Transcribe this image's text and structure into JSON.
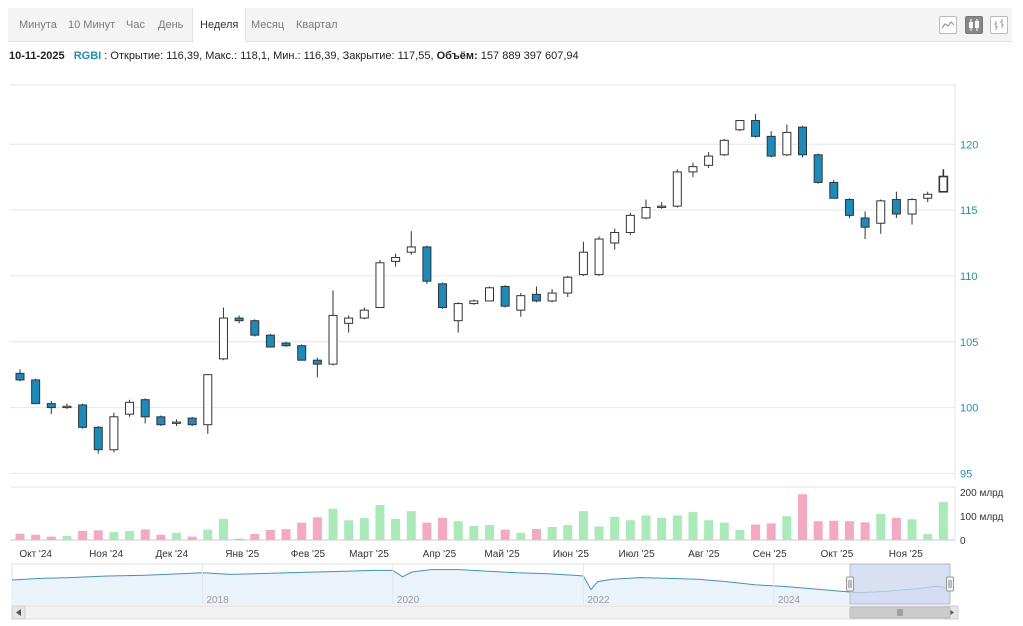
{
  "tabs": [
    {
      "label": "Минута",
      "active": false
    },
    {
      "label": "10 Минут",
      "active": false
    },
    {
      "label": "Час",
      "active": false
    },
    {
      "label": "День",
      "active": false
    },
    {
      "label": "Неделя",
      "active": true
    },
    {
      "label": "Месяц",
      "active": false
    },
    {
      "label": "Квартал",
      "active": false
    }
  ],
  "toolbar": {
    "icons": [
      "line-chart-icon",
      "candlestick-icon",
      "ohlc-bars-icon"
    ],
    "active": "candlestick-icon"
  },
  "info": {
    "date": "10-11-2025",
    "ticker": "RGBI",
    "open_label": "Открытие:",
    "open": "116,39",
    "high_label": "Макс.:",
    "high": "118,1",
    "low_label": "Мин.:",
    "low": "116,39",
    "close_label": "Закрытие:",
    "close": "117,55",
    "volume_label": "Объём:",
    "volume": "157 889 397 607,94"
  },
  "colors": {
    "up_fill": "#ffffff",
    "down_fill": "#1a8bbd",
    "candle_stroke": "#333333",
    "vol_up": "#a9eab9",
    "vol_down": "#f5a9c0",
    "axis_text": "#1f8fc4",
    "navigator_line": "#3d93c7",
    "navigator_mask": "#ccd6ee"
  },
  "chart_data": {
    "type": "candlestick",
    "period": "week",
    "y_ticks": [
      95,
      100,
      105,
      110,
      115,
      120
    ],
    "ylim": [
      94.5,
      124.5
    ],
    "volume_ticks": [
      "0",
      "100 млрд",
      "200 млрд"
    ],
    "volume_ylim": [
      0,
      220
    ],
    "x_labels": [
      {
        "label": "Окт '24",
        "index": 1
      },
      {
        "label": "Ноя '24",
        "index": 5.5
      },
      {
        "label": "Дек '24",
        "index": 9.7
      },
      {
        "label": "Янв '25",
        "index": 14.2
      },
      {
        "label": "Фев '25",
        "index": 18.4
      },
      {
        "label": "Март '25",
        "index": 22.3
      },
      {
        "label": "Апр '25",
        "index": 26.8
      },
      {
        "label": "Май '25",
        "index": 30.8
      },
      {
        "label": "Июн '25",
        "index": 35.2
      },
      {
        "label": "Июл '25",
        "index": 39.4
      },
      {
        "label": "Авг '25",
        "index": 43.7
      },
      {
        "label": "Сен '25",
        "index": 47.9
      },
      {
        "label": "Окт '25",
        "index": 52.2
      },
      {
        "label": "Ноя '25",
        "index": 56.6
      }
    ],
    "candles": [
      {
        "o": 102.6,
        "h": 102.9,
        "l": 102.0,
        "c": 102.1,
        "v": 26
      },
      {
        "o": 102.1,
        "h": 102.2,
        "l": 100.3,
        "c": 100.3,
        "v": 22
      },
      {
        "o": 100.3,
        "h": 100.5,
        "l": 99.5,
        "c": 100.0,
        "v": 14
      },
      {
        "o": 100.0,
        "h": 100.3,
        "l": 99.9,
        "c": 100.1,
        "v": 17
      },
      {
        "o": 100.2,
        "h": 100.3,
        "l": 98.4,
        "c": 98.5,
        "v": 38
      },
      {
        "o": 98.5,
        "h": 98.6,
        "l": 96.5,
        "c": 96.8,
        "v": 40
      },
      {
        "o": 96.8,
        "h": 99.6,
        "l": 96.6,
        "c": 99.3,
        "v": 33
      },
      {
        "o": 99.5,
        "h": 100.6,
        "l": 99.3,
        "c": 100.4,
        "v": 37
      },
      {
        "o": 100.6,
        "h": 100.7,
        "l": 98.8,
        "c": 99.3,
        "v": 44
      },
      {
        "o": 99.3,
        "h": 99.4,
        "l": 98.6,
        "c": 98.7,
        "v": 22
      },
      {
        "o": 98.8,
        "h": 99.1,
        "l": 98.6,
        "c": 98.9,
        "v": 30
      },
      {
        "o": 99.2,
        "h": 99.3,
        "l": 98.6,
        "c": 98.7,
        "v": 14
      },
      {
        "o": 98.7,
        "h": 102.5,
        "l": 98.0,
        "c": 102.5,
        "v": 43
      },
      {
        "o": 103.7,
        "h": 107.6,
        "l": 103.6,
        "c": 106.8,
        "v": 88
      },
      {
        "o": 106.8,
        "h": 107.0,
        "l": 106.4,
        "c": 106.6,
        "v": 5
      },
      {
        "o": 106.6,
        "h": 106.7,
        "l": 105.4,
        "c": 105.5,
        "v": 25
      },
      {
        "o": 105.5,
        "h": 105.6,
        "l": 104.6,
        "c": 104.6,
        "v": 42
      },
      {
        "o": 104.9,
        "h": 105.0,
        "l": 104.6,
        "c": 104.7,
        "v": 45
      },
      {
        "o": 104.7,
        "h": 104.8,
        "l": 103.6,
        "c": 103.6,
        "v": 72
      },
      {
        "o": 103.6,
        "h": 103.8,
        "l": 102.3,
        "c": 103.3,
        "v": 94
      },
      {
        "o": 103.3,
        "h": 108.9,
        "l": 103.2,
        "c": 107.0,
        "v": 130
      },
      {
        "o": 106.4,
        "h": 107.0,
        "l": 105.7,
        "c": 106.8,
        "v": 82
      },
      {
        "o": 106.8,
        "h": 107.6,
        "l": 106.7,
        "c": 107.4,
        "v": 91
      },
      {
        "o": 107.6,
        "h": 111.2,
        "l": 107.6,
        "c": 111.0,
        "v": 145
      },
      {
        "o": 111.1,
        "h": 111.7,
        "l": 110.7,
        "c": 111.4,
        "v": 87
      },
      {
        "o": 111.8,
        "h": 113.4,
        "l": 111.6,
        "c": 112.2,
        "v": 120
      },
      {
        "o": 112.2,
        "h": 112.3,
        "l": 109.4,
        "c": 109.6,
        "v": 72
      },
      {
        "o": 109.4,
        "h": 109.5,
        "l": 107.5,
        "c": 107.6,
        "v": 92
      },
      {
        "o": 106.6,
        "h": 108.0,
        "l": 105.7,
        "c": 107.9,
        "v": 78
      },
      {
        "o": 107.9,
        "h": 108.2,
        "l": 107.8,
        "c": 108.1,
        "v": 58
      },
      {
        "o": 108.1,
        "h": 109.2,
        "l": 108.1,
        "c": 109.1,
        "v": 62
      },
      {
        "o": 109.2,
        "h": 109.3,
        "l": 107.6,
        "c": 107.7,
        "v": 43
      },
      {
        "o": 107.4,
        "h": 108.7,
        "l": 106.9,
        "c": 108.5,
        "v": 30
      },
      {
        "o": 108.6,
        "h": 109.2,
        "l": 108.0,
        "c": 108.1,
        "v": 46
      },
      {
        "o": 108.1,
        "h": 109.0,
        "l": 108.0,
        "c": 108.7,
        "v": 54
      },
      {
        "o": 108.7,
        "h": 110.0,
        "l": 108.4,
        "c": 109.9,
        "v": 62
      },
      {
        "o": 110.1,
        "h": 112.6,
        "l": 110.0,
        "c": 111.8,
        "v": 120
      },
      {
        "o": 110.1,
        "h": 113.0,
        "l": 110.0,
        "c": 112.8,
        "v": 56
      },
      {
        "o": 112.5,
        "h": 113.6,
        "l": 112.0,
        "c": 113.3,
        "v": 96
      },
      {
        "o": 113.3,
        "h": 114.8,
        "l": 113.1,
        "c": 114.6,
        "v": 82
      },
      {
        "o": 114.4,
        "h": 115.8,
        "l": 114.3,
        "c": 115.2,
        "v": 102
      },
      {
        "o": 115.2,
        "h": 115.6,
        "l": 115.1,
        "c": 115.3,
        "v": 92
      },
      {
        "o": 115.3,
        "h": 118.1,
        "l": 115.2,
        "c": 117.9,
        "v": 102
      },
      {
        "o": 117.9,
        "h": 118.6,
        "l": 117.5,
        "c": 118.3,
        "v": 116
      },
      {
        "o": 118.4,
        "h": 119.4,
        "l": 118.2,
        "c": 119.1,
        "v": 82
      },
      {
        "o": 119.2,
        "h": 120.4,
        "l": 119.1,
        "c": 120.3,
        "v": 72
      },
      {
        "o": 121.1,
        "h": 121.8,
        "l": 121.0,
        "c": 121.8,
        "v": 42
      },
      {
        "o": 121.8,
        "h": 122.3,
        "l": 120.5,
        "c": 120.6,
        "v": 64
      },
      {
        "o": 120.6,
        "h": 121.0,
        "l": 119.0,
        "c": 119.1,
        "v": 69
      },
      {
        "o": 119.2,
        "h": 121.5,
        "l": 119.1,
        "c": 120.9,
        "v": 99
      },
      {
        "o": 121.3,
        "h": 121.4,
        "l": 119.0,
        "c": 119.2,
        "v": 190
      },
      {
        "o": 119.2,
        "h": 119.3,
        "l": 117.0,
        "c": 117.1,
        "v": 78
      },
      {
        "o": 117.1,
        "h": 117.3,
        "l": 115.9,
        "c": 115.9,
        "v": 80
      },
      {
        "o": 115.8,
        "h": 115.9,
        "l": 114.4,
        "c": 114.6,
        "v": 78
      },
      {
        "o": 114.4,
        "h": 114.9,
        "l": 112.8,
        "c": 113.7,
        "v": 73
      },
      {
        "o": 114.0,
        "h": 115.8,
        "l": 113.2,
        "c": 115.7,
        "v": 108
      },
      {
        "o": 115.8,
        "h": 116.4,
        "l": 114.4,
        "c": 114.7,
        "v": 92
      },
      {
        "o": 114.7,
        "h": 115.9,
        "l": 113.9,
        "c": 115.8,
        "v": 86
      },
      {
        "o": 115.9,
        "h": 116.4,
        "l": 115.6,
        "c": 116.2,
        "v": 25
      },
      {
        "o": 116.39,
        "h": 118.1,
        "l": 116.39,
        "c": 117.55,
        "v": 157.9
      }
    ],
    "navigator": {
      "x_labels": [
        "2018",
        "2020",
        "2022",
        "2024"
      ],
      "years": [
        2016.0,
        2016.3,
        2016.6,
        2017.0,
        2017.4,
        2017.8,
        2018.0,
        2018.3,
        2018.6,
        2018.9,
        2019.2,
        2019.5,
        2019.8,
        2020.0,
        2020.1,
        2020.2,
        2020.4,
        2020.7,
        2021.0,
        2021.3,
        2021.6,
        2021.9,
        2022.0,
        2022.08,
        2022.15,
        2022.3,
        2022.6,
        2022.9,
        2023.2,
        2023.5,
        2023.8,
        2024.1,
        2024.4,
        2024.7,
        2024.9,
        2025.2,
        2025.5,
        2025.7,
        2025.85
      ],
      "values": [
        130,
        132,
        133,
        135,
        136,
        138,
        139,
        137,
        138,
        139,
        140,
        141,
        142,
        142,
        134,
        140,
        143,
        143,
        141,
        139,
        138,
        136,
        135,
        118,
        128,
        131,
        133,
        132,
        131,
        128,
        124,
        122,
        119,
        116,
        114,
        116,
        119,
        122,
        120
      ],
      "selected_range": [
        2024.8,
        2025.85
      ]
    }
  }
}
